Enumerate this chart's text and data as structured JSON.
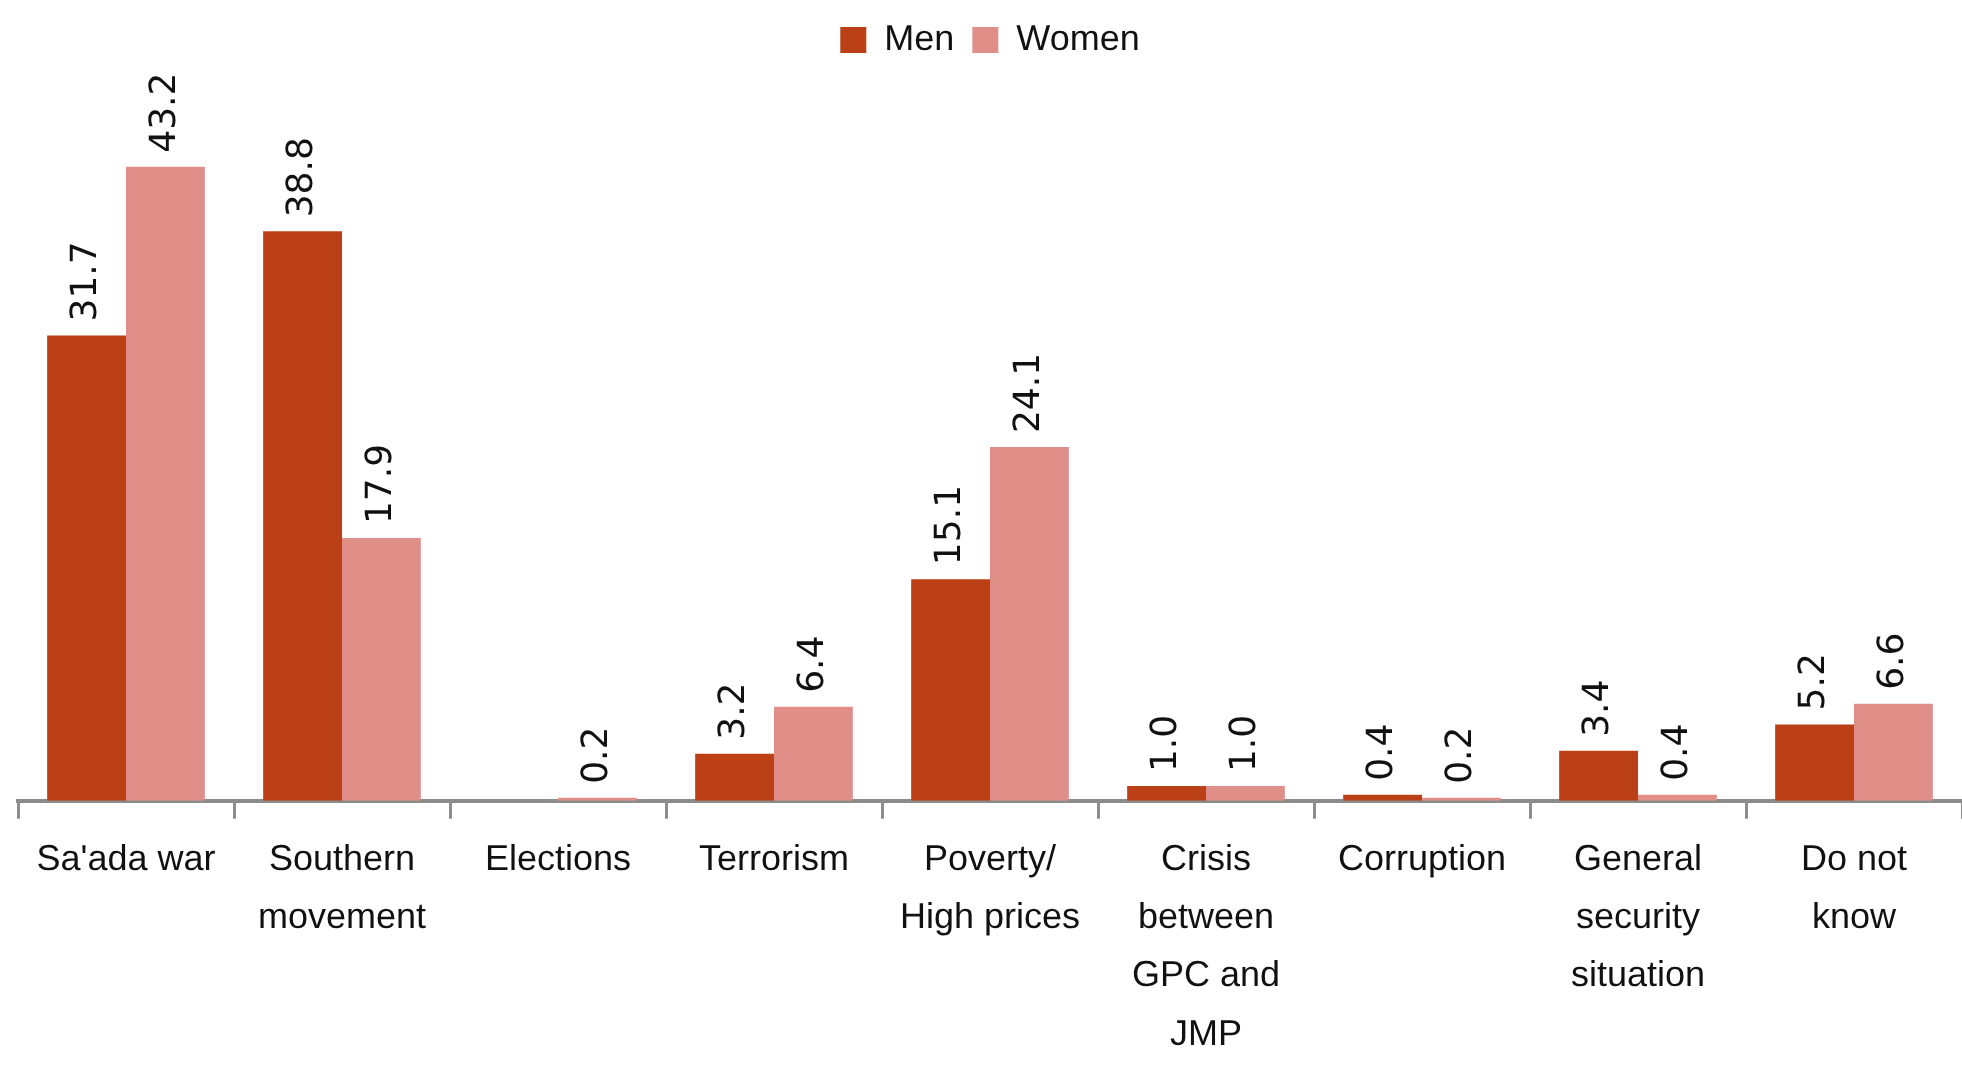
{
  "chart_data": {
    "type": "bar",
    "categories": [
      "Sa'ada war",
      "Southern movement",
      "Elections",
      "Terrorism",
      "Poverty/ High prices",
      "Crisis between GPC and JMP",
      "Corruption",
      "General security situation",
      "Do not know"
    ],
    "series": [
      {
        "name": "Men",
        "color": "#bb4016",
        "values": [
          31.7,
          38.8,
          null,
          3.2,
          15.1,
          1.0,
          0.4,
          3.4,
          5.2
        ],
        "value_labels": [
          "31.7",
          "38.8",
          null,
          "3.2",
          "15.1",
          "1.0",
          "0.4",
          "3.4",
          "5.2"
        ]
      },
      {
        "name": "Women",
        "color": "#df8f88",
        "values": [
          43.2,
          17.9,
          0.2,
          6.4,
          24.1,
          1.0,
          0.2,
          0.4,
          6.6
        ],
        "value_labels": [
          "43.2",
          "17.9",
          "0.2",
          "6.4",
          "24.1",
          "1.0",
          "0.2",
          "0.4",
          "6.6"
        ]
      }
    ],
    "legend": "top",
    "grid": false,
    "tick_labels": "x"
  }
}
